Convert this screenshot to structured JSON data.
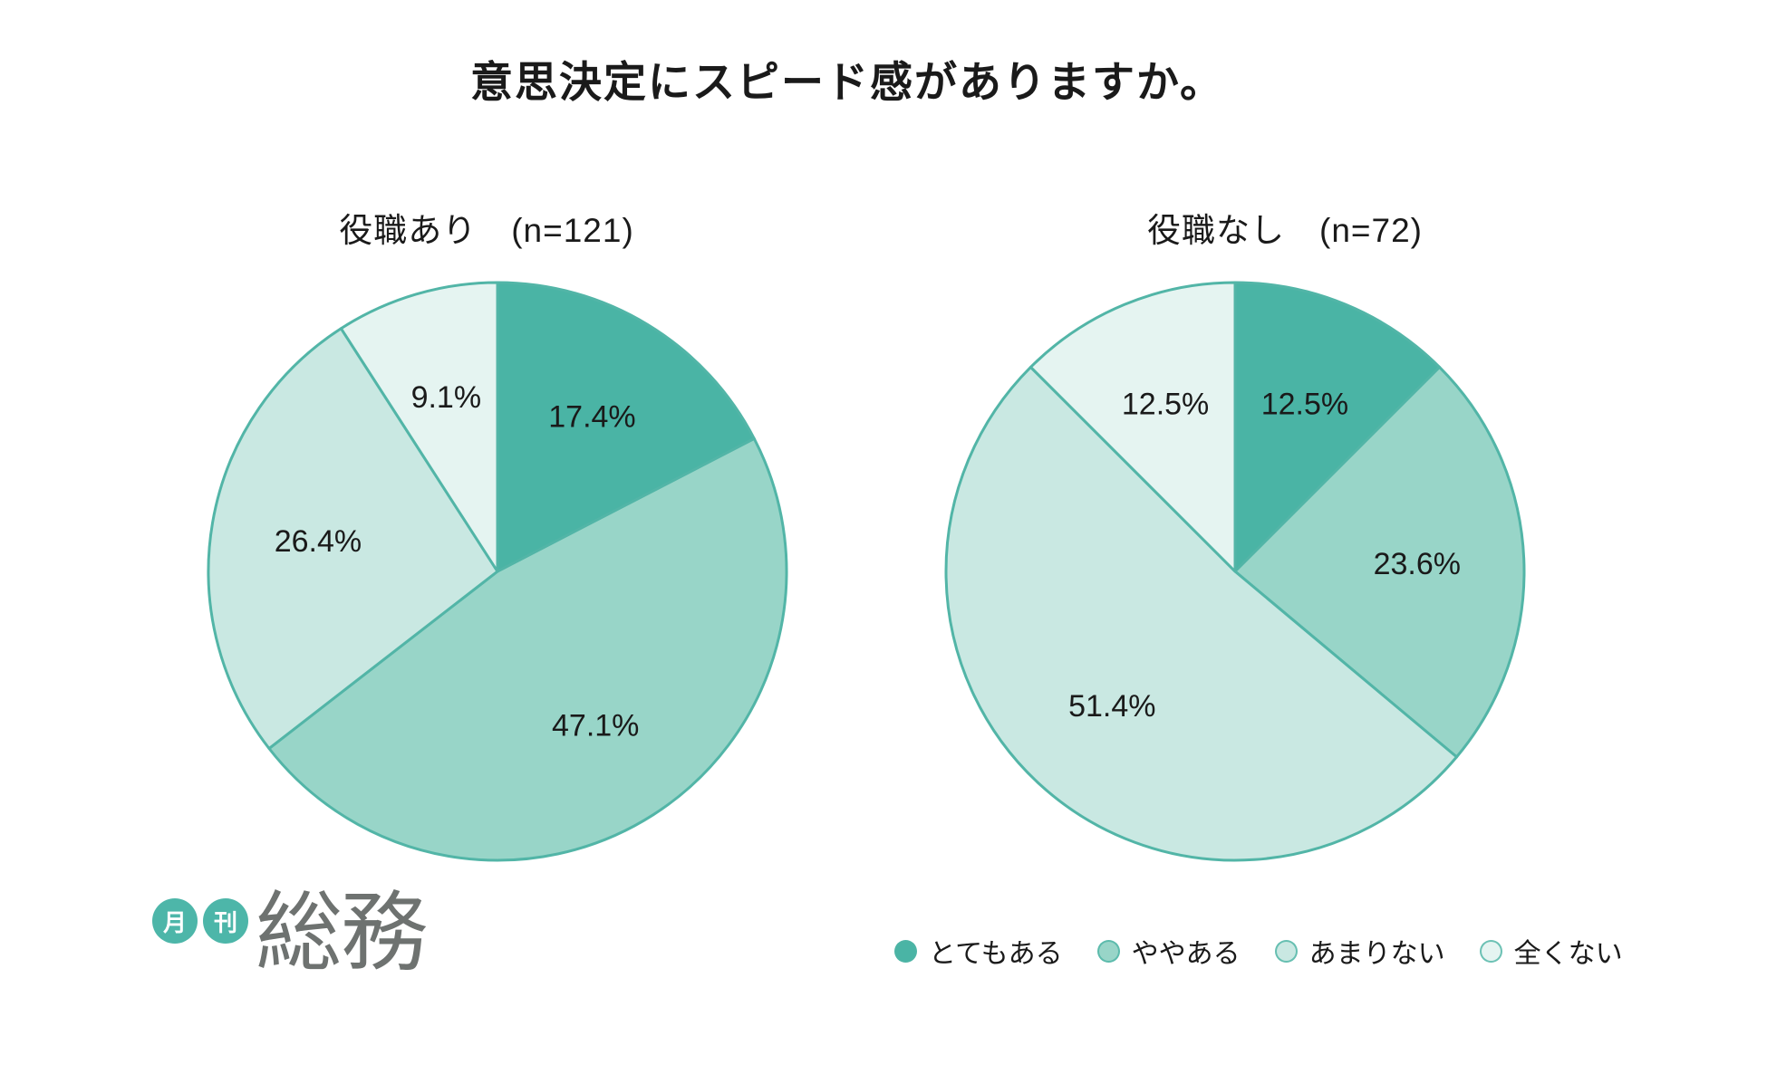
{
  "title": "意思決定にスピード感がありますか。",
  "text_color": "#1a1a1a",
  "stroke_color": "#52b5a7",
  "palette": [
    "#4ab4a5",
    "#98d5c8",
    "#c9e8e2",
    "#e5f4f1"
  ],
  "categories": [
    "とてもある",
    "ややある",
    "あまりない",
    "全くない"
  ],
  "legend": {
    "items": [
      {
        "label": "とてもある",
        "color": "#4ab4a5"
      },
      {
        "label": "ややある",
        "color": "#98d5c8"
      },
      {
        "label": "あまりない",
        "color": "#c9e8e2"
      },
      {
        "label": "全くない",
        "color": "#e5f4f1"
      }
    ]
  },
  "chart_data": [
    {
      "type": "pie",
      "subtitle": "役職あり　(n=121)",
      "group": "役職あり",
      "n": 121,
      "categories": [
        "とてもある",
        "ややある",
        "あまりない",
        "全くない"
      ],
      "values": [
        17.4,
        47.1,
        26.4,
        9.1
      ],
      "value_labels": [
        "17.4%",
        "47.1%",
        "26.4%",
        "9.1%"
      ],
      "start_angle": "12 o'clock",
      "direction": "clockwise"
    },
    {
      "type": "pie",
      "subtitle": "役職なし　(n=72)",
      "group": "役職なし",
      "n": 72,
      "categories": [
        "とてもある",
        "ややある",
        "あまりない",
        "全くない"
      ],
      "values": [
        12.5,
        23.6,
        51.4,
        12.5
      ],
      "value_labels": [
        "12.5%",
        "23.6%",
        "51.4%",
        "12.5%"
      ],
      "start_angle": "12 o'clock",
      "direction": "clockwise"
    }
  ],
  "logo": {
    "badge_left": "月",
    "badge_right": "刊",
    "wordmark": "総務",
    "teal": "#4db6a9",
    "gray": "#6e7270"
  }
}
